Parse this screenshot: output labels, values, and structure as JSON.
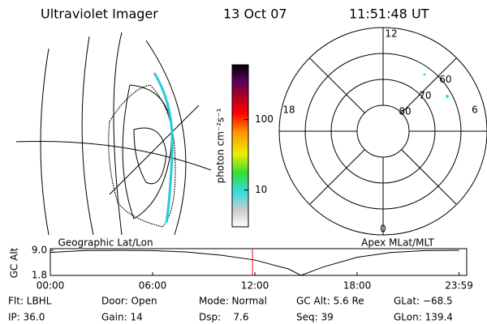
{
  "header": {
    "title": "Ultraviolet Imager",
    "date": "13 Oct 07",
    "time": "11:51:48 UT"
  },
  "panel_labels": [
    "Geographic Lat/Lon",
    "Apex MLat/MLT"
  ],
  "chart_data": [
    {
      "type": "colorbar",
      "ylabel": "photon cm⁻²s⁻¹",
      "log_scale": true,
      "ylim": [
        3,
        600
      ],
      "yticks": [
        10,
        100
      ]
    },
    {
      "type": "polar",
      "rlim": [
        90,
        50
      ],
      "rticks": [
        60,
        70,
        80
      ],
      "angle_labels": [
        "12",
        "18",
        "0",
        "6"
      ]
    },
    {
      "type": "line",
      "ylabel": "GC Alt",
      "x": [
        0,
        2,
        4,
        6,
        8,
        10,
        12,
        14,
        14.7,
        16,
        18,
        20,
        22,
        23.98
      ],
      "series": [
        {
          "values": [
            8.4,
            8.9,
            9.0,
            8.9,
            8.5,
            7.6,
            6.2,
            3.6,
            1.8,
            4.2,
            7.0,
            8.4,
            8.9,
            9.0
          ],
          "color": "#000000"
        }
      ],
      "xlim": [
        0,
        24
      ],
      "xticks": [
        {
          "value": 0,
          "label": "00:00"
        },
        {
          "value": 6,
          "label": "06:00"
        },
        {
          "value": 12,
          "label": "12:00"
        },
        {
          "value": 18,
          "label": "18:00"
        },
        {
          "value": 23.98,
          "label": "23:59"
        }
      ],
      "ylim": [
        1.8,
        9.0
      ],
      "yticks": [
        {
          "value": 9,
          "label": "9.0"
        },
        1.8
      ],
      "marker_x": 11.86,
      "marker_color": "#ff0000"
    }
  ],
  "info": [
    [
      "Flt: LBHL",
      "Door: Open",
      "Mode: Normal",
      "GC Alt: 5.6 Re",
      "GLat: −68.5"
    ],
    [
      "IP: 36.0",
      "Gain: 14",
      "Dsp:    7.6",
      "Seq: 39",
      "GLon: 139.4"
    ]
  ]
}
